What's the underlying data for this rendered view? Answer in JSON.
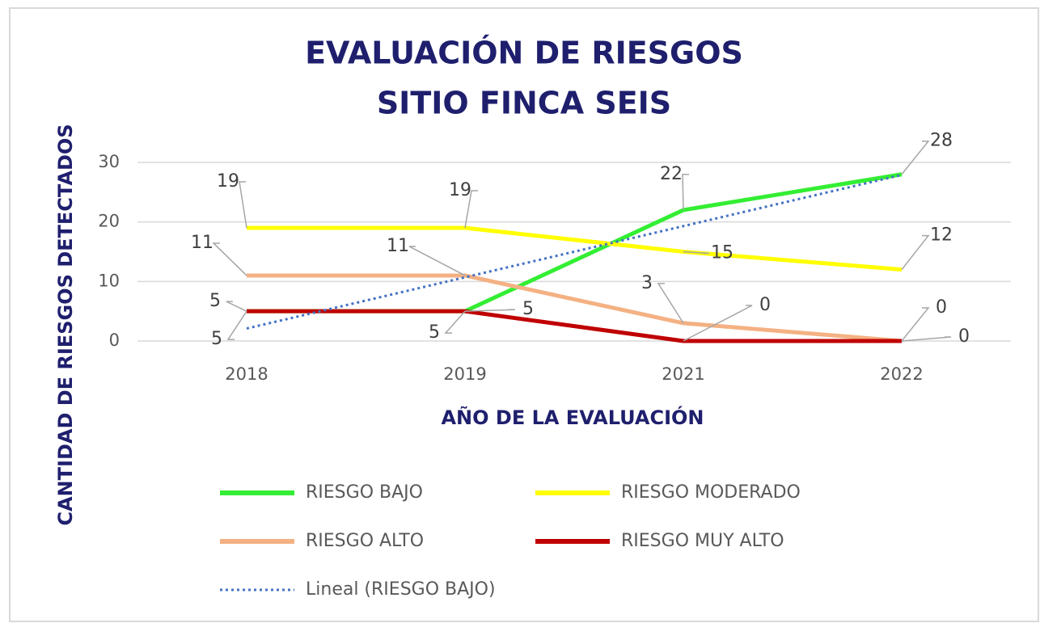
{
  "chart_data": {
    "type": "line",
    "title": [
      "EVALUACIÓN DE RIESGOS",
      "SITIO FINCA SEIS"
    ],
    "x_label": "AÑO DE LA EVALUACIÓN",
    "y_label": "CANTIDAD DE RIESGOS  DETECTADOS",
    "categories": [
      "2018",
      "2019",
      "2021",
      "2022"
    ],
    "series": [
      {
        "name": "RIESGO BAJO",
        "color": "#33ee33",
        "values": [
          5,
          5,
          22,
          28
        ]
      },
      {
        "name": "RIESGO MODERADO",
        "color": "#ffff00",
        "values": [
          19,
          19,
          15,
          12
        ]
      },
      {
        "name": "RIESGO ALTO",
        "color": "#f4b183",
        "values": [
          11,
          11,
          3,
          0
        ]
      },
      {
        "name": "RIESGO MUY ALTO",
        "color": "#c00000",
        "values": [
          5,
          5,
          0,
          0
        ]
      },
      {
        "name": "Lineal (RIESGO BAJO)",
        "color": "#4472c4",
        "dashed": true,
        "values": [
          2.1,
          10.7,
          19.3,
          27.9
        ]
      }
    ],
    "data_labels": true,
    "ylim": [
      0,
      30
    ],
    "yticks": [
      0,
      10,
      20,
      30
    ],
    "grid": true,
    "legend": "bottom"
  }
}
